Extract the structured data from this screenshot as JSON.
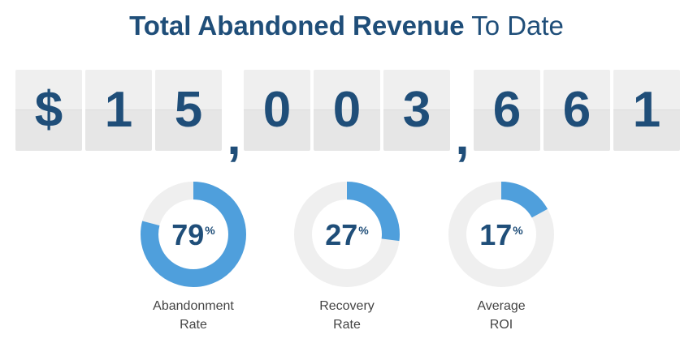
{
  "header": {
    "title_strong": "Total Abandoned Revenue",
    "title_light": "To Date"
  },
  "counter": {
    "tiles": [
      "$",
      "1",
      "5",
      "0",
      "0",
      "3",
      "6",
      "6",
      "1"
    ],
    "separator": ","
  },
  "stats": [
    {
      "value": "79",
      "unit": "%",
      "label_line1": "Abandonment",
      "label_line2": "Rate",
      "percent": 79
    },
    {
      "value": "27",
      "unit": "%",
      "label_line1": "Recovery",
      "label_line2": "Rate",
      "percent": 27
    },
    {
      "value": "17",
      "unit": "%",
      "label_line1": "Average",
      "label_line2": "ROI",
      "percent": 17
    }
  ],
  "colors": {
    "text": "#1f4e79",
    "accent": "#4f9fdc",
    "track": "#efefef",
    "tile": "#efefef",
    "label": "#444444"
  }
}
